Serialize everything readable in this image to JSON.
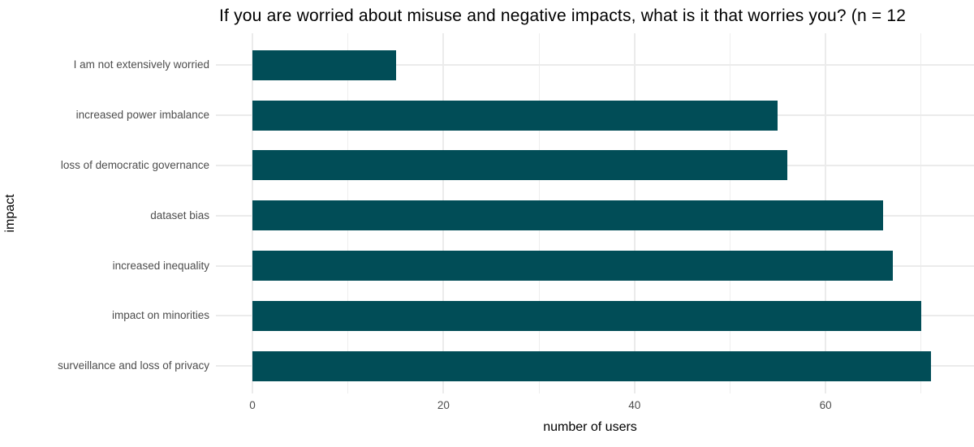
{
  "title": "If you are worried about misuse and negative impacts, what is it that worries you? (n = 12",
  "chart_data": {
    "type": "bar",
    "orientation": "horizontal",
    "title": "If you are worried about misuse and negative impacts, what is it that worries you? (n = 12",
    "xlabel": "number of users",
    "ylabel": "impact",
    "categories": [
      "I am not extensively worried",
      "increased power imbalance",
      "loss of democratic governance",
      "dataset bias",
      "increased inequality",
      "impact on minorities",
      "surveillance and loss of privacy"
    ],
    "values": [
      15,
      55,
      56,
      66,
      67,
      70,
      71
    ],
    "xticks": [
      0,
      20,
      40,
      60
    ],
    "xminor_ticks": [
      10,
      30,
      50,
      70
    ],
    "xlim": [
      -3.8,
      75.5
    ],
    "grid": "major-and-minor-vertical, major-horizontal",
    "legend": "none",
    "bar_color": "#014d57",
    "gridline_color": "#ebebeb",
    "axis_text_color": "#4d4d4d",
    "title_color": "#000000"
  }
}
